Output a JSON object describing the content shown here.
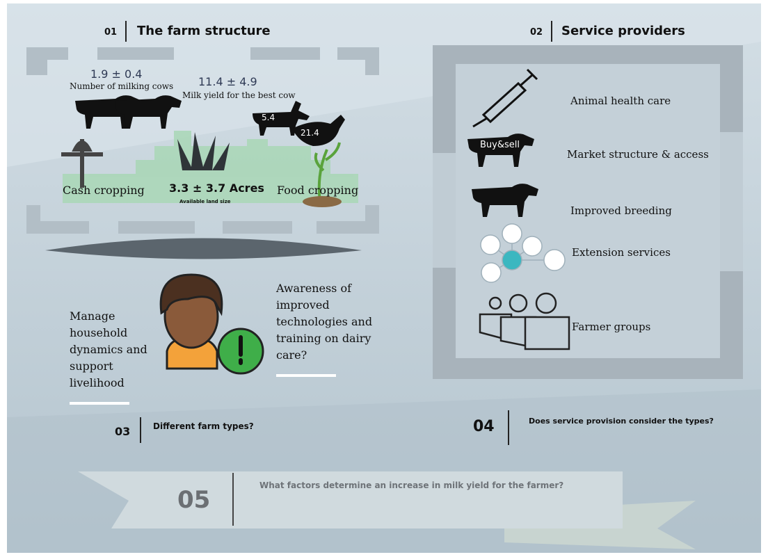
{
  "section_01": {
    "number": "01",
    "title": "The farm structure",
    "cows_count": "1.9 ± 0.4",
    "cows_label": "Number of milking cows",
    "milk_yield": "11.4 ± 4.9",
    "milk_yield_label": "Milk yield for the best cow",
    "goats": "5.4",
    "chickens": "21.4",
    "cash_cropping": "Cash cropping",
    "land_size": "3.3 ± 3.7 Acres",
    "land_label": "Available land size",
    "food_cropping": "Food cropping"
  },
  "section_02": {
    "number": "02",
    "title": "Service providers",
    "buy_sell": "Buy&sell",
    "services": [
      "Animal health care",
      "Market structure & access",
      "Improved breeding",
      "Extension services",
      "Farmer groups"
    ]
  },
  "farmer": {
    "left": [
      "Manage",
      "household",
      "dynamics and",
      "support",
      "livelihood"
    ],
    "right": [
      "Awareness of",
      "improved",
      "technologies and",
      "training on dairy",
      "care?"
    ]
  },
  "section_03": {
    "number": "03",
    "title": "Different farm types?"
  },
  "section_04": {
    "number": "04",
    "title": "Does service provision consider the types?"
  },
  "section_05": {
    "number": "05",
    "title": "What factors determine an increase in milk yield for the farmer?"
  }
}
